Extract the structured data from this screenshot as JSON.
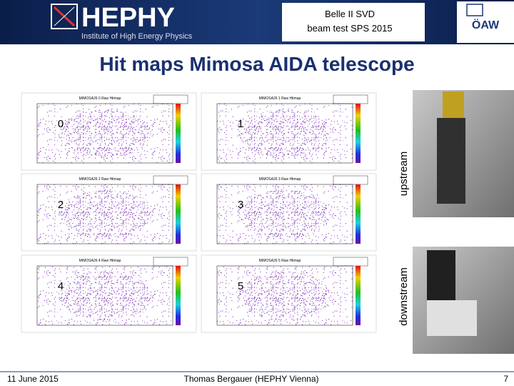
{
  "header": {
    "logo": "HEPHY",
    "institute": "Institute of High Energy Physics",
    "event": [
      "Belle II SVD",
      "beam test SPS 2015"
    ],
    "partner": "ÖAW"
  },
  "title": "Hit maps Mimosa AIDA telescope",
  "panels": [
    {
      "label": "0",
      "title": "MIMOSA26 0 Raw Hitmap"
    },
    {
      "label": "1",
      "title": "MIMOSA26 1 Raw Hitmap"
    },
    {
      "label": "2",
      "title": "MIMOSA26 2 Raw Hitmap"
    },
    {
      "label": "3",
      "title": "MIMOSA26 3 Raw Hitmap"
    },
    {
      "label": "4",
      "title": "MIMOSA26 4 Raw Hitmap"
    },
    {
      "label": "5",
      "title": "MIMOSA26 5 Raw Hitmap"
    }
  ],
  "side_labels": [
    "upstream",
    "downstream"
  ],
  "footer": {
    "date": "11 June 2015",
    "author": "Thomas Bergauer (HEPHY Vienna)",
    "page": "7"
  }
}
